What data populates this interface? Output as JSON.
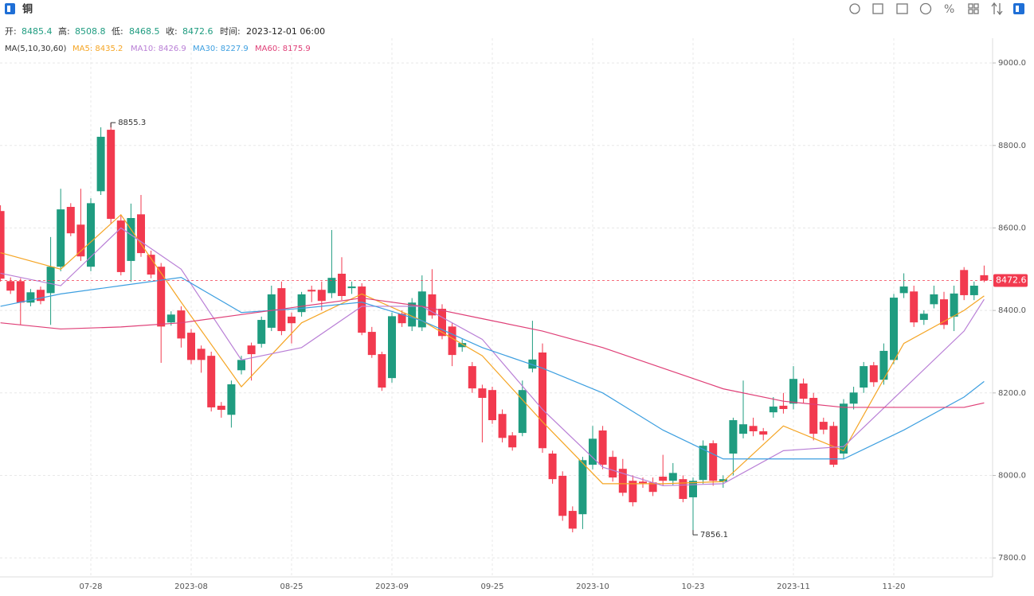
{
  "header": {
    "title": "铜",
    "ohlc_labels": [
      "开:",
      "高:",
      "低:",
      "收:"
    ],
    "time_label": "时间:",
    "time": "2023-12-01 06:00"
  },
  "chart_data": {
    "type": "candlestick",
    "categories": [
      null,
      null,
      null,
      null,
      null,
      null,
      null,
      null,
      null,
      "07-28",
      null,
      null,
      null,
      null,
      null,
      null,
      null,
      null,
      null,
      "2023-08",
      null,
      null,
      null,
      null,
      null,
      null,
      null,
      null,
      null,
      "08-25",
      null,
      null,
      null,
      null,
      null,
      null,
      null,
      null,
      null,
      "2023-09",
      null,
      null,
      null,
      null,
      null,
      null,
      null,
      null,
      null,
      "09-25",
      null,
      null,
      null,
      null,
      null,
      null,
      null,
      null,
      null,
      "2023-10",
      null,
      null,
      null,
      null,
      null,
      null,
      null,
      null,
      null,
      "10-23",
      null,
      null,
      null,
      null,
      null,
      null,
      null,
      null,
      null,
      "2023-11",
      null,
      null,
      null,
      null,
      null,
      null,
      null,
      null,
      null,
      "11-20",
      null,
      null,
      null,
      null,
      null,
      null,
      null,
      null,
      null
    ],
    "open": [
      8641,
      8471,
      8471,
      8419,
      8450,
      8442,
      8506,
      8651,
      8608,
      8506,
      8689,
      8838,
      8618,
      8520,
      8633,
      8535,
      8506,
      8371,
      8400,
      8346,
      8307,
      8290,
      8169,
      8147,
      8255,
      8315,
      8319,
      8358,
      8454,
      8385,
      8396,
      8450,
      8450,
      8442,
      8489,
      8454,
      8458,
      8348,
      8294,
      8236,
      8392,
      8361,
      8359,
      8439,
      8404,
      8361,
      8311,
      8265,
      8211,
      8207,
      8149,
      8097,
      8103,
      8259,
      8298,
      8053,
      7999,
      7914,
      7906,
      8026,
      8109,
      8045,
      8016,
      7987,
      7985,
      7983,
      7997,
      7987,
      7991,
      7947,
      7989,
      8078,
      7985,
      8053,
      8101,
      8120,
      8107,
      8153,
      8169,
      8174,
      8223,
      8188,
      8130,
      8120,
      8053,
      8174,
      8213,
      8267,
      8232,
      8280,
      8442,
      8446,
      8377,
      8415,
      8427,
      8385,
      8498,
      8437,
      8485.4
    ],
    "high": [
      8655,
      8480,
      8478,
      8452,
      8458,
      8578,
      8695,
      8660,
      8695,
      8672,
      8844,
      8855.3,
      8630,
      8659,
      8680,
      8545,
      8515,
      8398,
      8410,
      8355,
      8315,
      8300,
      8178,
      8230,
      8290,
      8322,
      8385,
      8460,
      8470,
      8395,
      8445,
      8460,
      8470,
      8595,
      8529,
      8470,
      8466,
      8360,
      8300,
      8395,
      8400,
      8430,
      8485,
      8500,
      8415,
      8370,
      8330,
      8275,
      8220,
      8215,
      8160,
      8105,
      8230,
      8375,
      8320,
      8060,
      8010,
      7925,
      8045,
      8120,
      8120,
      8060,
      8040,
      8000,
      7995,
      7995,
      8050,
      8030,
      8000,
      7995,
      8085,
      8085,
      8000,
      8140,
      8230,
      8140,
      8115,
      8190,
      8200,
      8265,
      8235,
      8200,
      8140,
      8130,
      8185,
      8215,
      8275,
      8275,
      8320,
      8440,
      8490,
      8460,
      8400,
      8460,
      8445,
      8460,
      8505,
      8470,
      8508.8
    ],
    "low": [
      8470,
      8440,
      8365,
      8410,
      8415,
      8365,
      8495,
      8580,
      8520,
      8495,
      8680,
      8610,
      8485,
      8469,
      8530,
      8478,
      8273,
      8363,
      8310,
      8270,
      8249,
      8155,
      8140,
      8116,
      8245,
      8230,
      8310,
      8350,
      8340,
      8320,
      8385,
      8420,
      8400,
      8430,
      8425,
      8440,
      8340,
      8285,
      8205,
      8225,
      8360,
      8350,
      8350,
      8380,
      8330,
      8265,
      8300,
      8200,
      8080,
      8125,
      8080,
      8060,
      8095,
      8250,
      8055,
      7980,
      7890,
      7862,
      7870,
      8015,
      8015,
      7985,
      7950,
      7925,
      7970,
      7950,
      7975,
      7975,
      7935,
      7856.1,
      7980,
      7975,
      7970,
      8000,
      8090,
      8095,
      8085,
      8140,
      8150,
      8160,
      8175,
      8085,
      8100,
      8020,
      8040,
      8160,
      8200,
      8215,
      8220,
      8270,
      8430,
      8360,
      8365,
      8405,
      8355,
      8350,
      8425,
      8425,
      8468.5
    ],
    "close": [
      8477,
      8448,
      8419,
      8444,
      8423,
      8506,
      8645,
      8587,
      8531,
      8660,
      8821,
      8622,
      8493,
      8624,
      8539,
      8487,
      8361,
      8390,
      8332,
      8280,
      8280,
      8165,
      8159,
      8221,
      8280,
      8294,
      8377,
      8439,
      8350,
      8369,
      8439,
      8446,
      8423,
      8479,
      8435,
      8458,
      8346,
      8292,
      8213,
      8386,
      8369,
      8419,
      8446,
      8388,
      8338,
      8292,
      8321,
      8211,
      8188,
      8134,
      8091,
      8068,
      8207,
      8281,
      8066,
      7991,
      7902,
      7871,
      8037,
      8089,
      8026,
      7995,
      7958,
      7935,
      7981,
      7960,
      7987,
      8006,
      7943,
      7987,
      8072,
      7987,
      7991,
      8134,
      8124,
      8107,
      8099,
      8167,
      8161,
      8234,
      8186,
      8101,
      8111,
      8026,
      8174,
      8201,
      8265,
      8226,
      8302,
      8431,
      8458,
      8371,
      8392,
      8439,
      8365,
      8441,
      8437,
      8460,
      8472.6
    ],
    "up_color": "#1f9c80",
    "down_color": "#f23a4f",
    "ma_title": "MA(5,10,30,60)",
    "series": [
      {
        "name": "MA5: 8435.2",
        "color": "#f5a524",
        "x": [
          0,
          6,
          12,
          18,
          24,
          30,
          36,
          42,
          48,
          54,
          60,
          66,
          72,
          78,
          84,
          90,
          96,
          98
        ],
        "values": [
          8540,
          8500,
          8632,
          8420,
          8215,
          8370,
          8440,
          8375,
          8290,
          8130,
          7980,
          7980,
          7985,
          8120,
          8060,
          8320,
          8400,
          8435.2
        ]
      },
      {
        "name": "MA10: 8426.9",
        "color": "#b97fd6",
        "x": [
          0,
          6,
          12,
          18,
          24,
          30,
          36,
          42,
          48,
          54,
          60,
          66,
          72,
          78,
          84,
          90,
          96,
          98
        ],
        "values": [
          8490,
          8460,
          8600,
          8500,
          8280,
          8310,
          8410,
          8410,
          8330,
          8160,
          8020,
          7975,
          7980,
          8060,
          8070,
          8210,
          8350,
          8426.9
        ]
      },
      {
        "name": "MA30: 8227.9",
        "color": "#3d9fe0",
        "x": [
          0,
          6,
          12,
          18,
          24,
          30,
          36,
          42,
          48,
          54,
          60,
          66,
          72,
          78,
          84,
          90,
          96,
          98
        ],
        "values": [
          8410,
          8440,
          8460,
          8480,
          8395,
          8405,
          8420,
          8375,
          8310,
          8260,
          8200,
          8110,
          8040,
          8040,
          8040,
          8110,
          8190,
          8227.9
        ]
      },
      {
        "name": "MA60: 8175.9",
        "color": "#df3f77",
        "x": [
          0,
          6,
          12,
          18,
          24,
          30,
          36,
          42,
          48,
          54,
          60,
          66,
          72,
          78,
          84,
          90,
          96,
          98
        ],
        "values": [
          8370,
          8355,
          8360,
          8370,
          8390,
          8410,
          8430,
          8410,
          8380,
          8350,
          8310,
          8260,
          8210,
          8180,
          8165,
          8165,
          8165,
          8175.9
        ]
      }
    ],
    "ylim": [
      7754,
      9060
    ],
    "yticks": [
      {
        "value": 7800,
        "label": "7800.0"
      },
      {
        "value": 8000,
        "label": "8000.0"
      },
      {
        "value": 8200,
        "label": "8200.0"
      },
      {
        "value": 8400,
        "label": "8400.0"
      },
      {
        "value": 8600,
        "label": "8600.0"
      },
      {
        "value": 8800,
        "label": "8800.0"
      },
      {
        "value": 9000,
        "label": "9000.0"
      }
    ],
    "grid": true
  }
}
